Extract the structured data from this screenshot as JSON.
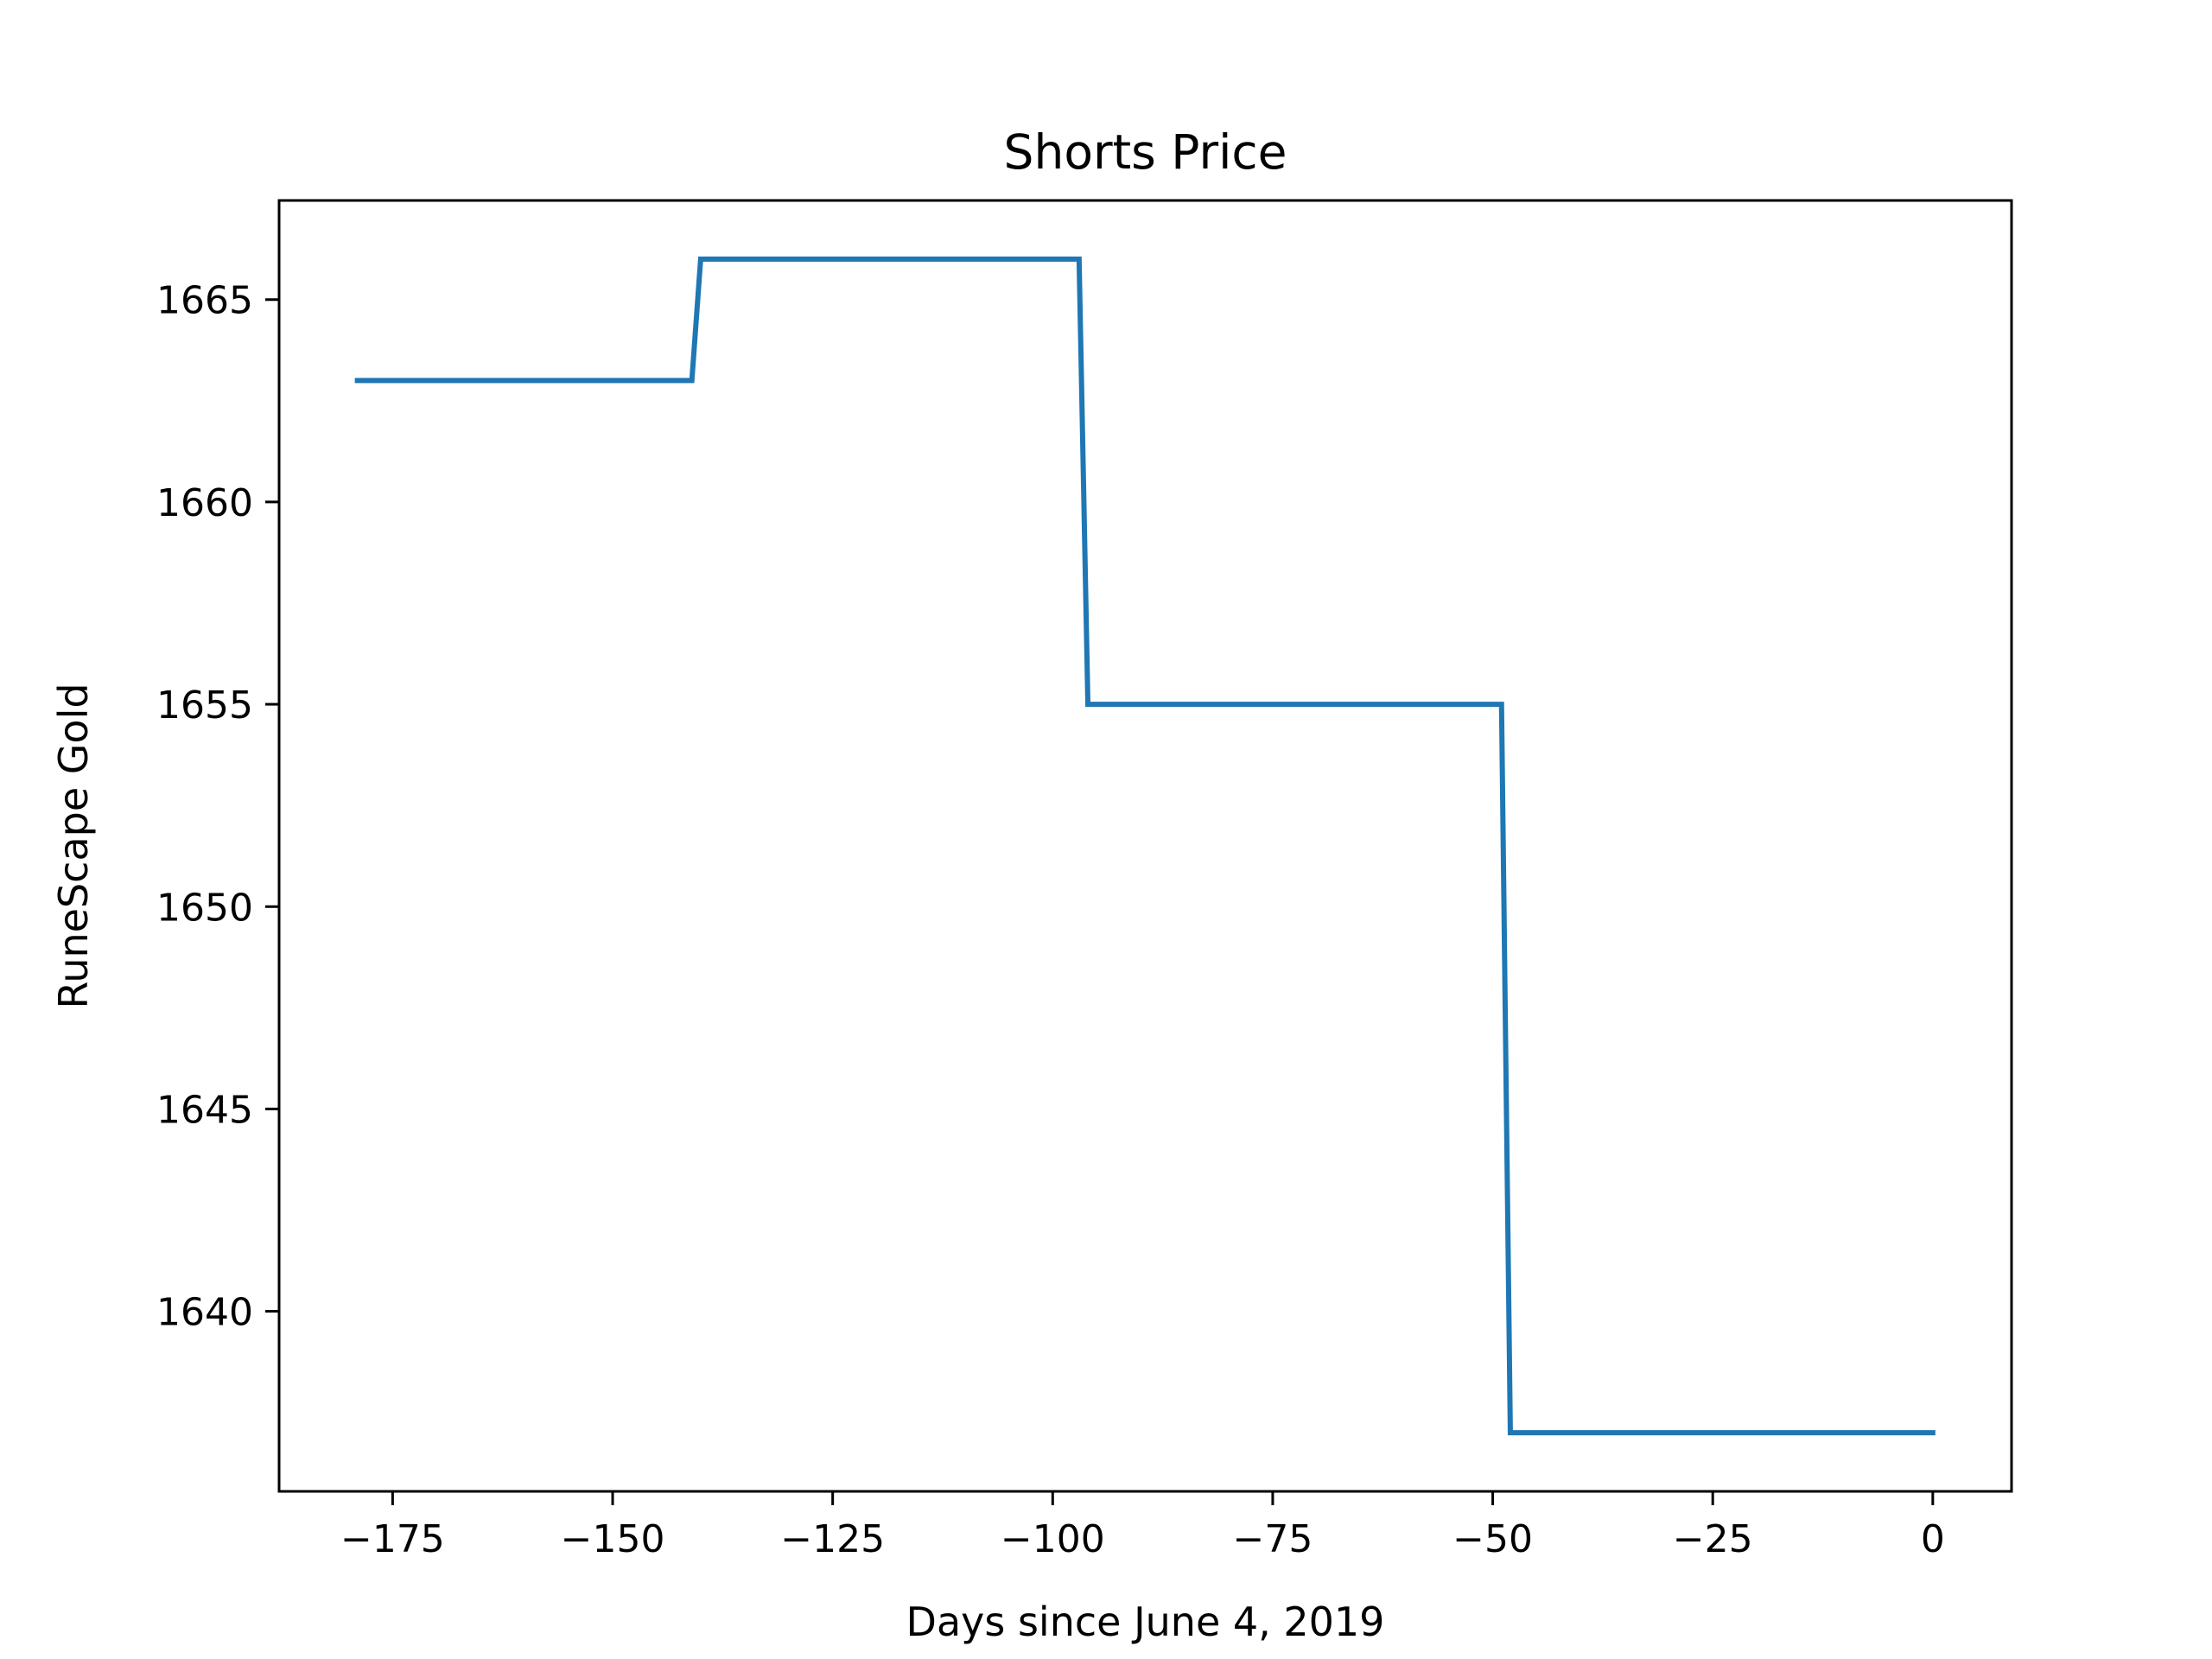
{
  "chart_data": {
    "type": "line",
    "title": "Shorts Price",
    "xlabel": "Days since June 4, 2019",
    "ylabel": "RuneScape Gold",
    "xlim": [
      -187.9,
      8.95
    ],
    "ylim": [
      1635.55,
      1667.45
    ],
    "x_ticks": [
      -175,
      -150,
      -125,
      -100,
      -75,
      -50,
      -25,
      0
    ],
    "x_tick_labels": [
      "−175",
      "−150",
      "−125",
      "−100",
      "−75",
      "−50",
      "−25",
      "0"
    ],
    "y_ticks": [
      1640,
      1645,
      1650,
      1655,
      1660,
      1665
    ],
    "y_tick_labels": [
      "1640",
      "1645",
      "1650",
      "1655",
      "1660",
      "1665"
    ],
    "grid": false,
    "series": [
      {
        "color": "#1f77b4",
        "x": [
          -179,
          -141,
          -140,
          -97,
          -96,
          -49,
          -48,
          0
        ],
        "y": [
          1663,
          1663,
          1666,
          1666,
          1655,
          1655,
          1637,
          1637
        ]
      }
    ]
  }
}
